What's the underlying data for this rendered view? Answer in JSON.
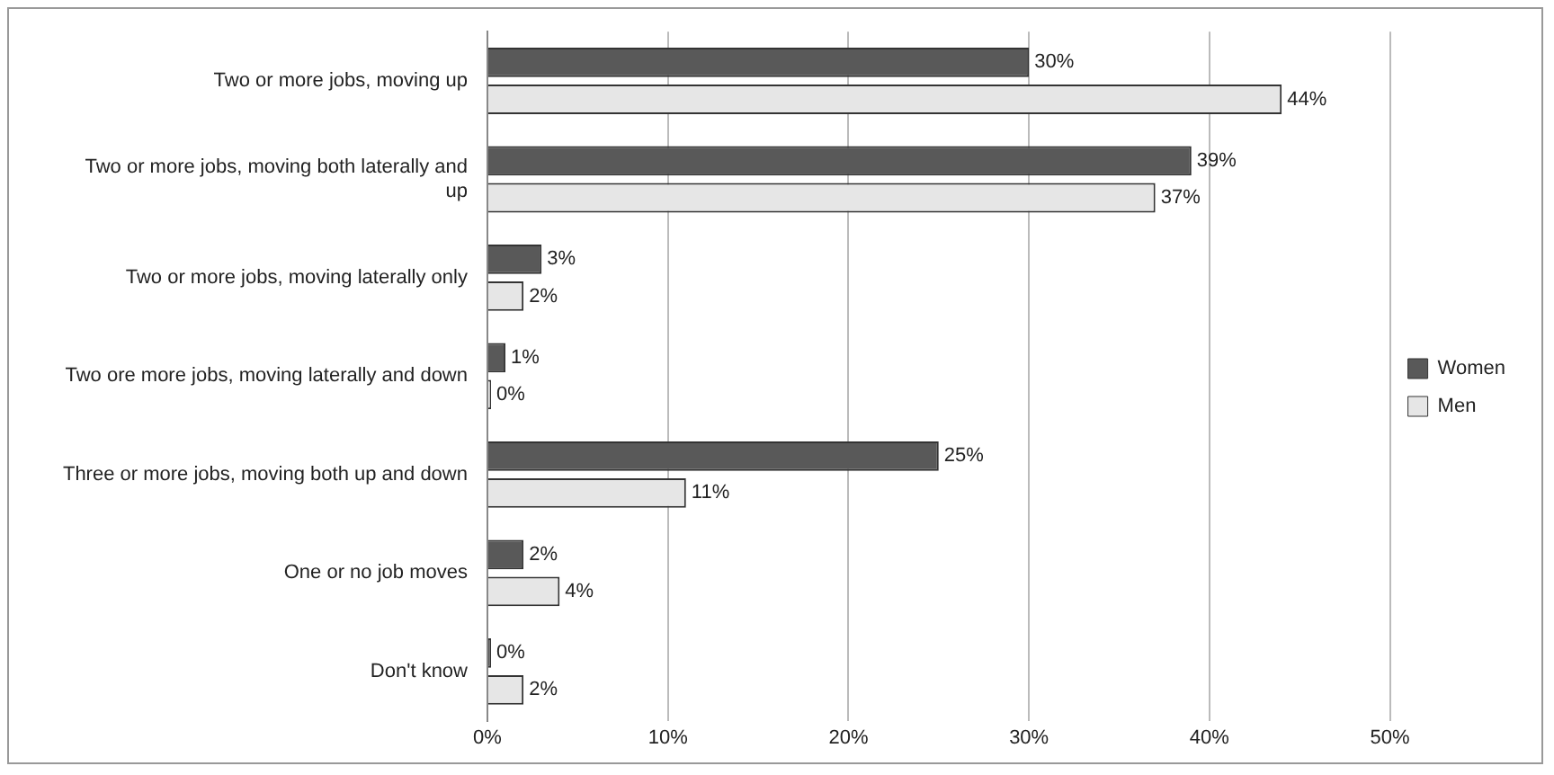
{
  "chart_data": {
    "type": "bar",
    "orientation": "horizontal",
    "categories": [
      "Two or more jobs, moving up",
      "Two or more jobs, moving both laterally and up",
      "Two or more jobs, moving laterally only",
      "Two ore more jobs, moving laterally and down",
      "Three or more jobs, moving both up and down",
      "One or no job moves",
      "Don't know"
    ],
    "series": [
      {
        "name": "Women",
        "color": "#595959",
        "values": [
          30,
          39,
          3,
          1,
          25,
          2,
          0
        ],
        "value_labels": [
          "30%",
          "39%",
          "3%",
          "1%",
          "25%",
          "2%",
          "0%"
        ]
      },
      {
        "name": "Men",
        "color": "#e6e6e6",
        "values": [
          44,
          37,
          2,
          0,
          11,
          4,
          2
        ],
        "value_labels": [
          "44%",
          "37%",
          "2%",
          "0%",
          "11%",
          "4%",
          "2%"
        ]
      }
    ],
    "xlim": [
      0,
      50
    ],
    "xticks": [
      {
        "value": 0,
        "label": "0%"
      },
      {
        "value": 10,
        "label": "10%"
      },
      {
        "value": 20,
        "label": "20%"
      },
      {
        "value": 30,
        "label": "30%"
      },
      {
        "value": 40,
        "label": "40%"
      },
      {
        "value": 50,
        "label": "50%"
      }
    ],
    "grid": "x",
    "legend": "right"
  }
}
